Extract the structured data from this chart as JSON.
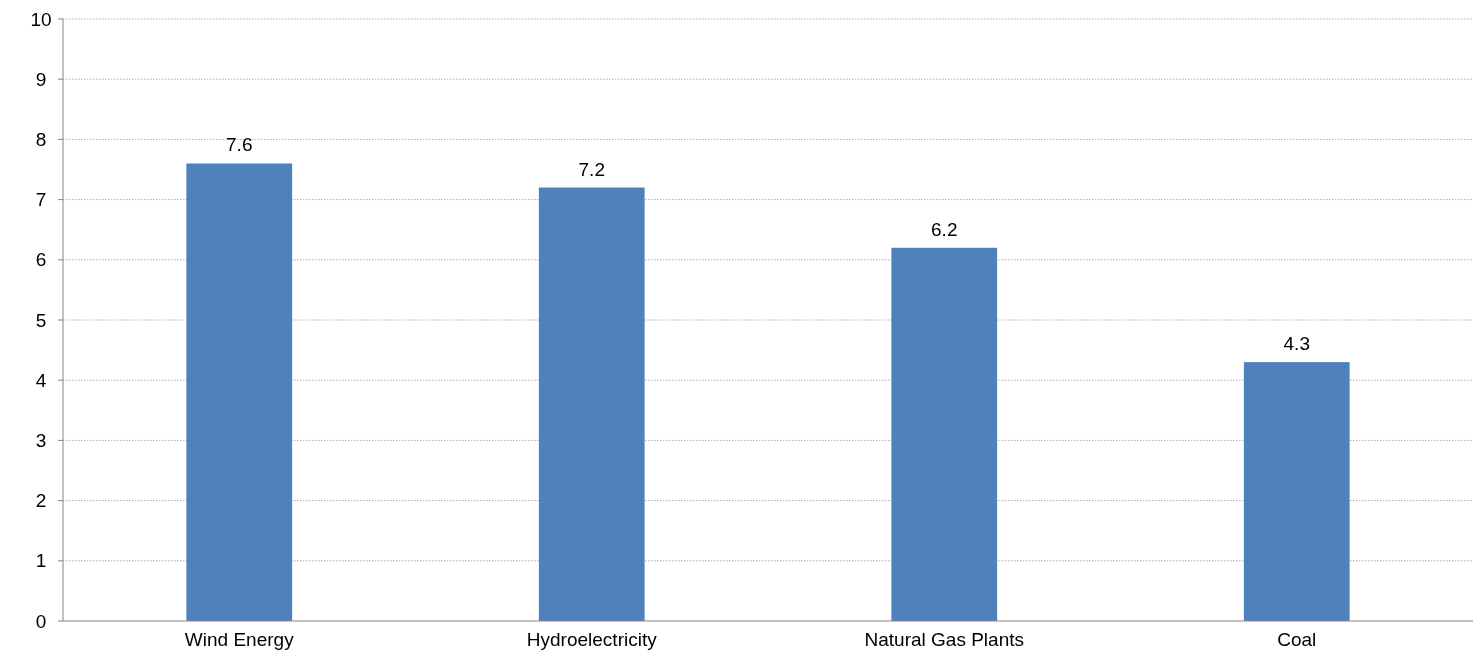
{
  "chart_data": {
    "type": "bar",
    "categories": [
      "Wind Energy",
      "Hydroelectricity",
      "Natural Gas Plants",
      "Coal"
    ],
    "values": [
      7.6,
      7.2,
      6.2,
      4.3
    ],
    "color": "#4f81bd",
    "ylim": [
      0,
      10
    ],
    "yticks": [
      0,
      1,
      2,
      3,
      4,
      5,
      6,
      7,
      8,
      9,
      10
    ],
    "grid": "y",
    "data_labels": true
  }
}
